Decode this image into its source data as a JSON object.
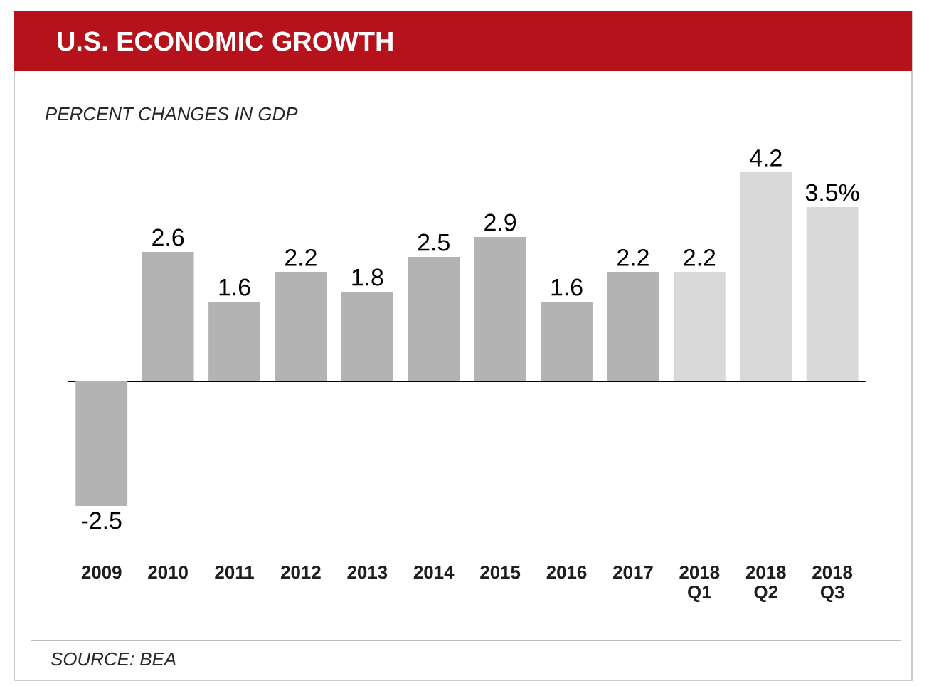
{
  "chart_data": {
    "type": "bar",
    "title": "U.S. ECONOMIC GROWTH",
    "subtitle": "PERCENT CHANGES IN GDP",
    "categories": [
      "2009",
      "2010",
      "2011",
      "2012",
      "2013",
      "2014",
      "2015",
      "2016",
      "2017",
      "2018 Q1",
      "2018 Q2",
      "2018 Q3"
    ],
    "values": [
      -2.5,
      2.6,
      1.6,
      2.2,
      1.8,
      2.5,
      2.9,
      1.6,
      2.2,
      2.2,
      4.2,
      3.5
    ],
    "value_labels": [
      "-2.5",
      "2.6",
      "1.6",
      "2.2",
      "1.8",
      "2.5",
      "2.9",
      "1.6",
      "2.2",
      "2.2",
      "4.2",
      "3.5%"
    ],
    "colors": [
      "#b3b3b3",
      "#b3b3b3",
      "#b3b3b3",
      "#b3b3b3",
      "#b3b3b3",
      "#b3b3b3",
      "#b3b3b3",
      "#b3b3b3",
      "#b3b3b3",
      "#d9d9d9",
      "#d9d9d9",
      "#d9d9d9"
    ],
    "annotations": [
      "SOURCE: BEA"
    ]
  }
}
